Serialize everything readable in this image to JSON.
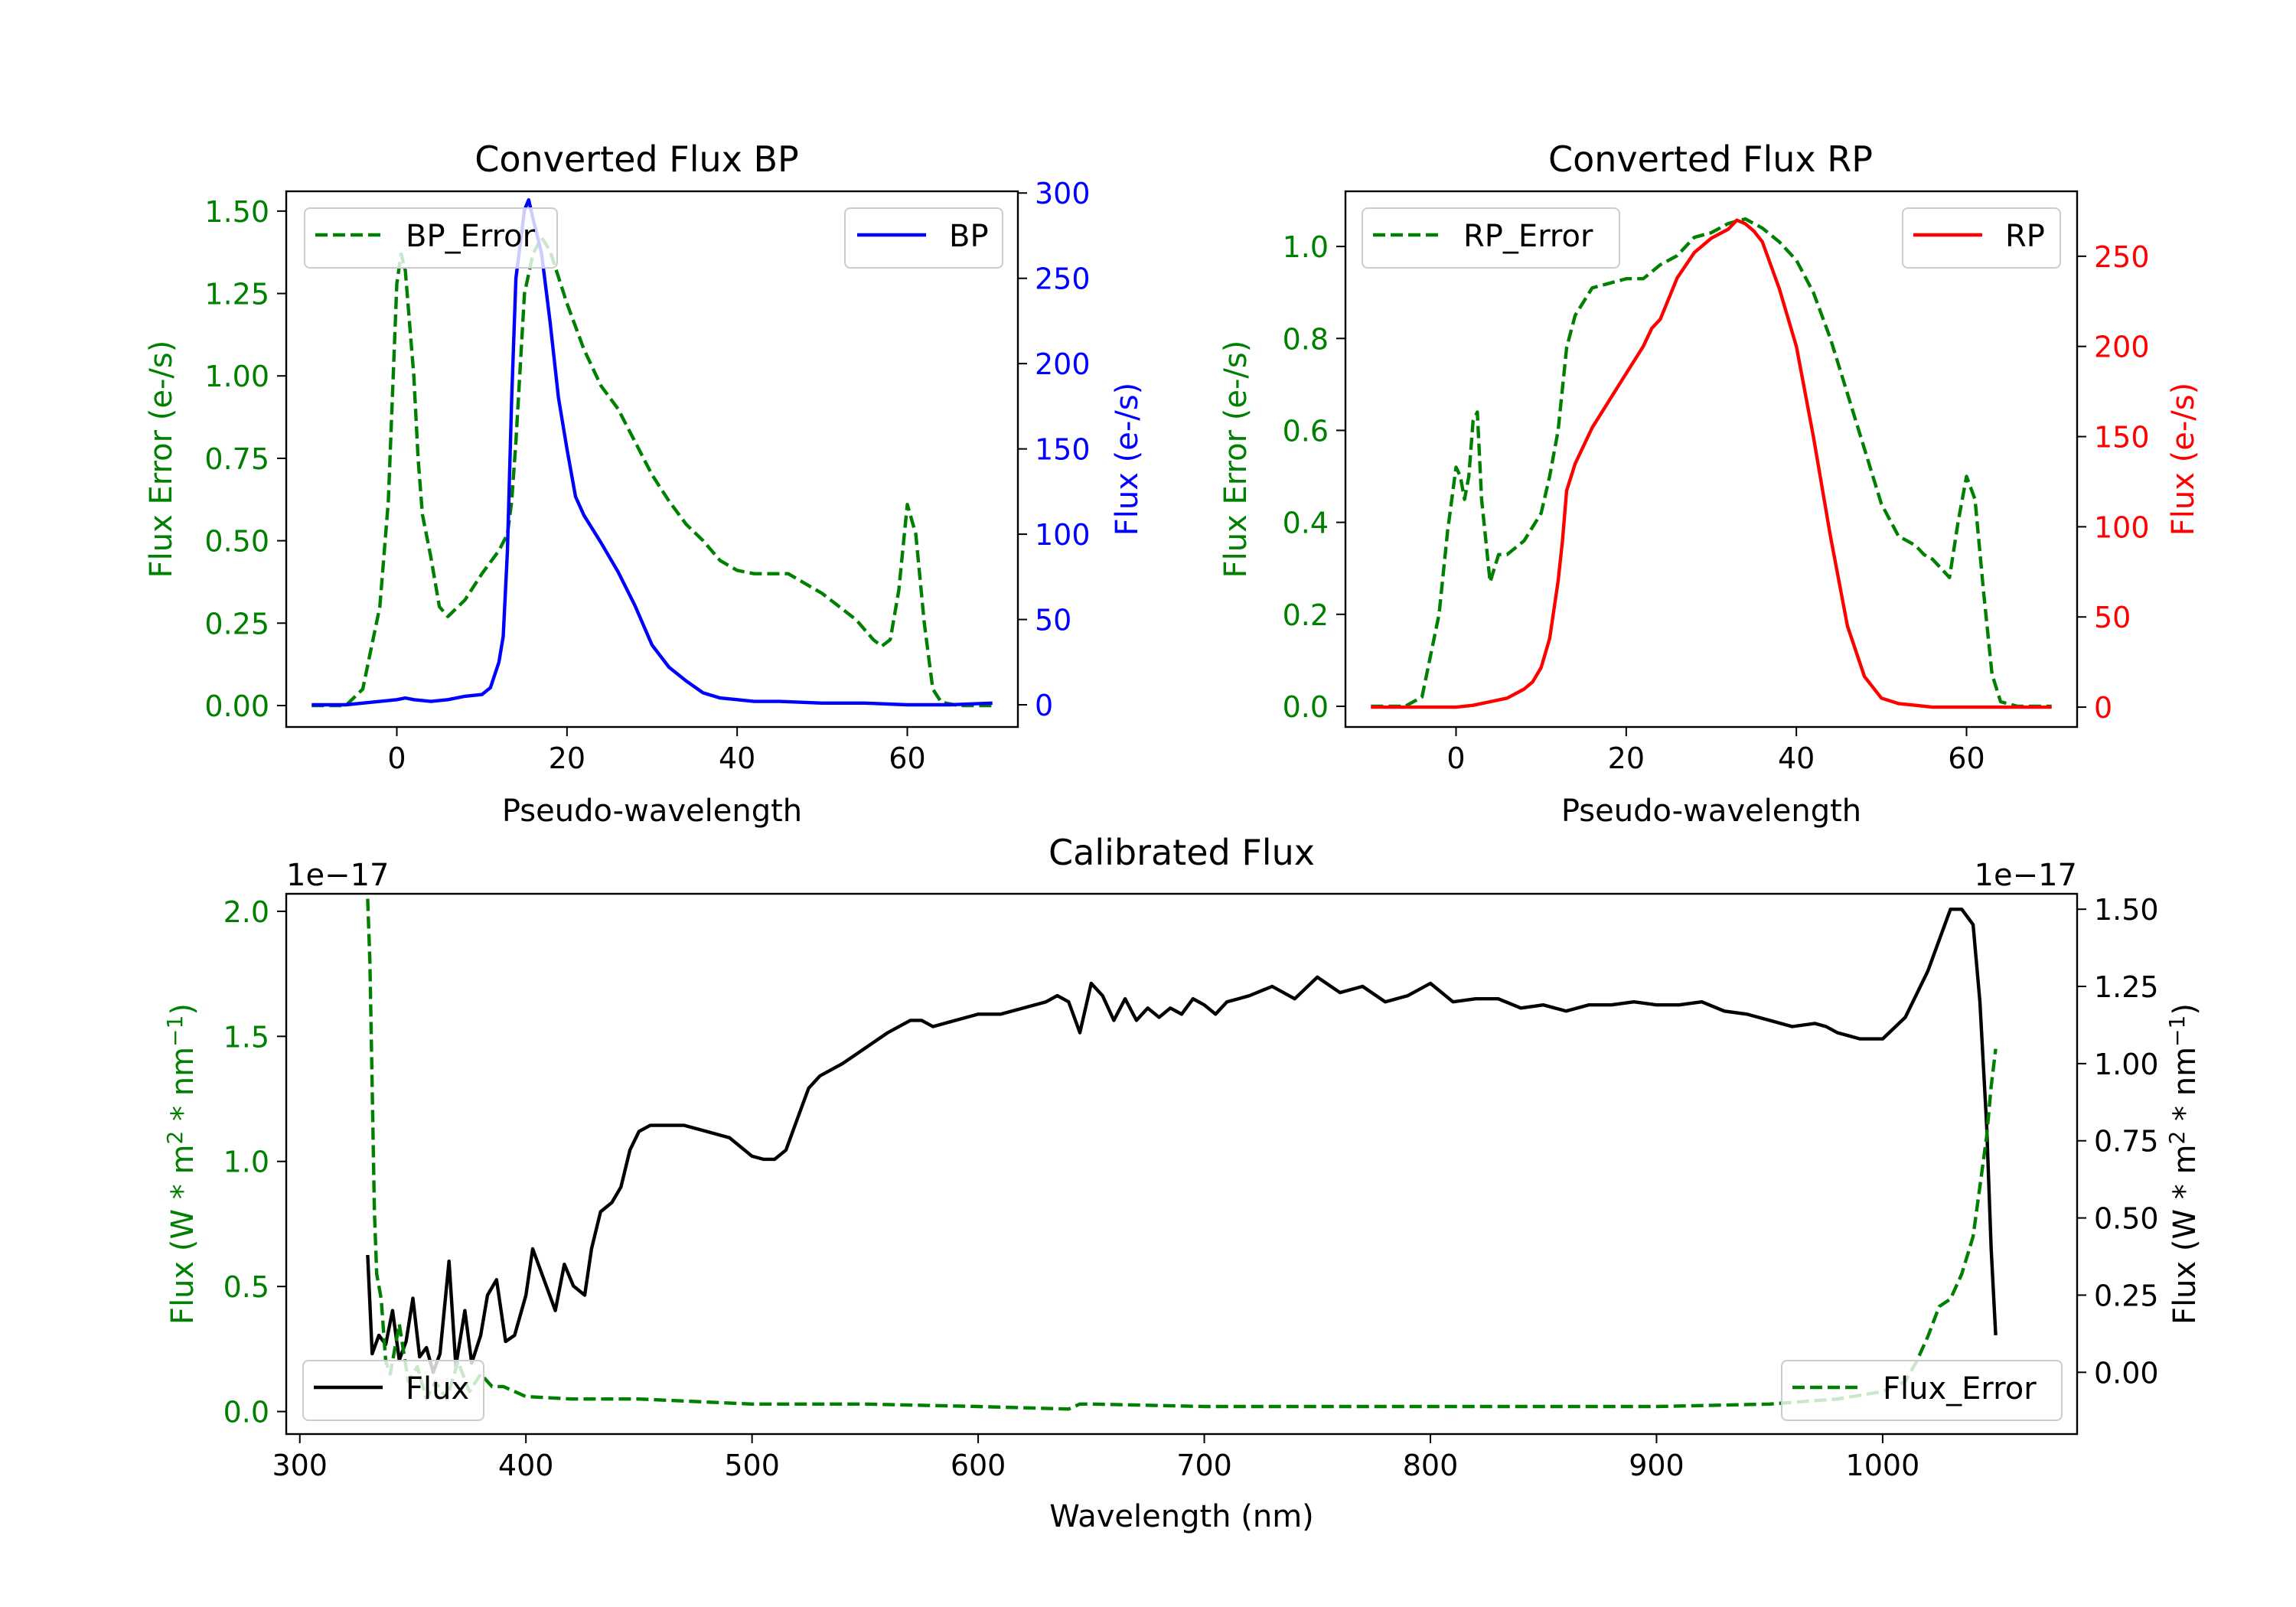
{
  "colors": {
    "bp": "#0000ff",
    "rp": "#ff0000",
    "error": "#008000",
    "flux": "#000000",
    "axis": "#000000"
  },
  "chart_data": [
    {
      "type": "line",
      "title": "Converted Flux BP",
      "xlabel": "Pseudo-wavelength",
      "y1label": "Flux Error (e-/s)",
      "y2label": "Flux (e-/s)",
      "xlim": [
        -13,
        73
      ],
      "y1lim": [
        -0.065,
        1.56
      ],
      "y2lim": [
        -13,
        301
      ],
      "xticks": [
        0,
        20,
        40,
        60
      ],
      "y1ticks": [
        "0.00",
        "0.25",
        "0.50",
        "0.75",
        "1.00",
        "1.25",
        "1.50"
      ],
      "y2ticks": [
        "0",
        "50",
        "100",
        "150",
        "200",
        "250",
        "300"
      ],
      "series": [
        {
          "name": "BP_Error",
          "axis": "left",
          "style": "dashed",
          "color": "#008000",
          "legend": "upper left",
          "x": [
            -10,
            -6,
            -4,
            -2,
            -1,
            0,
            0.5,
            1,
            2,
            2.5,
            3,
            4,
            5,
            6,
            8,
            10,
            12,
            13,
            13.5,
            14,
            15,
            16,
            17,
            18,
            20,
            22,
            24,
            26,
            28,
            30,
            32,
            34,
            36,
            38,
            40,
            42,
            44,
            46,
            48,
            50,
            52,
            54,
            56,
            57,
            58,
            59,
            60,
            61,
            62,
            63,
            64,
            66,
            68,
            70
          ],
          "y": [
            0,
            0,
            0.05,
            0.3,
            0.62,
            1.28,
            1.37,
            1.32,
            1.0,
            0.75,
            0.58,
            0.45,
            0.3,
            0.27,
            0.32,
            0.4,
            0.47,
            0.52,
            0.62,
            0.8,
            1.25,
            1.37,
            1.42,
            1.38,
            1.22,
            1.08,
            0.97,
            0.9,
            0.8,
            0.7,
            0.62,
            0.55,
            0.5,
            0.44,
            0.41,
            0.4,
            0.4,
            0.4,
            0.37,
            0.34,
            0.3,
            0.26,
            0.2,
            0.18,
            0.2,
            0.35,
            0.61,
            0.52,
            0.25,
            0.05,
            0.01,
            0,
            0,
            0
          ]
        },
        {
          "name": "BP",
          "axis": "right",
          "style": "solid",
          "color": "#0000ff",
          "legend": "upper right",
          "x": [
            -10,
            -6,
            -4,
            -2,
            0,
            1,
            2,
            4,
            6,
            8,
            10,
            11,
            12,
            12.5,
            13,
            13.5,
            14,
            15,
            15.5,
            16,
            17,
            18,
            19,
            20,
            21,
            22,
            24,
            26,
            28,
            30,
            32,
            34,
            36,
            38,
            40,
            42,
            45,
            50,
            55,
            60,
            65,
            70
          ],
          "y": [
            0,
            0,
            1,
            2,
            3,
            4,
            3,
            2,
            3,
            5,
            6,
            10,
            25,
            40,
            90,
            180,
            250,
            290,
            296,
            285,
            265,
            225,
            180,
            150,
            122,
            111,
            95,
            78,
            58,
            35,
            22,
            14,
            7,
            4,
            3,
            2,
            2,
            1,
            1,
            0,
            0,
            1
          ]
        }
      ]
    },
    {
      "type": "line",
      "title": "Converted Flux RP",
      "xlabel": "Pseudo-wavelength",
      "y1label": "Flux Error (e-/s)",
      "y2label": "Flux (e-/s)",
      "xlim": [
        -13,
        73
      ],
      "y1lim": [
        -0.045,
        1.12
      ],
      "y2lim": [
        -11,
        286
      ],
      "xticks": [
        0,
        20,
        40,
        60
      ],
      "y1ticks": [
        "0.0",
        "0.2",
        "0.4",
        "0.6",
        "0.8",
        "1.0"
      ],
      "y2ticks": [
        "0",
        "50",
        "100",
        "150",
        "200",
        "250"
      ],
      "series": [
        {
          "name": "RP_Error",
          "axis": "left",
          "style": "dashed",
          "color": "#008000",
          "legend": "upper left",
          "x": [
            -10,
            -6,
            -4,
            -2,
            -1,
            0,
            0.5,
            1,
            1.5,
            2,
            2.5,
            3,
            4,
            5,
            6,
            8,
            10,
            11,
            12,
            13,
            14,
            16,
            18,
            20,
            22,
            24,
            26,
            28,
            30,
            32,
            34,
            36,
            38,
            40,
            42,
            44,
            46,
            48,
            50,
            52,
            54,
            55,
            56,
            57,
            58,
            59,
            60,
            61,
            62,
            63,
            64,
            66,
            68,
            70
          ],
          "y": [
            0,
            0,
            0.02,
            0.2,
            0.38,
            0.52,
            0.5,
            0.45,
            0.5,
            0.62,
            0.64,
            0.45,
            0.27,
            0.33,
            0.33,
            0.36,
            0.42,
            0.5,
            0.6,
            0.78,
            0.85,
            0.91,
            0.92,
            0.93,
            0.93,
            0.96,
            0.98,
            1.02,
            1.03,
            1.05,
            1.06,
            1.04,
            1.01,
            0.97,
            0.9,
            0.8,
            0.68,
            0.56,
            0.44,
            0.37,
            0.35,
            0.33,
            0.32,
            0.3,
            0.28,
            0.4,
            0.5,
            0.45,
            0.25,
            0.07,
            0.01,
            0,
            0,
            0
          ]
        },
        {
          "name": "RP",
          "axis": "right",
          "style": "solid",
          "color": "#ff0000",
          "legend": "upper right",
          "x": [
            -10,
            -4,
            0,
            2,
            4,
            6,
            8,
            9,
            10,
            11,
            12,
            12.5,
            13,
            14,
            15,
            16,
            18,
            20,
            22,
            23,
            24,
            26,
            28,
            30,
            32,
            33,
            34,
            35,
            36,
            37,
            38,
            40,
            42,
            44,
            46,
            48,
            50,
            52,
            54,
            56,
            58,
            60,
            65,
            70
          ],
          "y": [
            0,
            0,
            0,
            1,
            3,
            5,
            10,
            14,
            22,
            38,
            70,
            92,
            120,
            135,
            145,
            155,
            170,
            185,
            200,
            210,
            215,
            238,
            252,
            260,
            265,
            270,
            268,
            264,
            258,
            245,
            232,
            200,
            150,
            95,
            45,
            17,
            5,
            2,
            1,
            0,
            0,
            0,
            0,
            0
          ]
        }
      ]
    },
    {
      "type": "line",
      "title": "Calibrated Flux",
      "xlabel": "Wavelength (nm)",
      "y1label": "Flux (W * m$^2$ * nm$^{-1}$)",
      "y2label": "Flux (W * m$^2$ * nm$^{-1}$)",
      "y1offset": "1e−17",
      "y2offset": "1e−17",
      "xlim": [
        294,
        1086
      ],
      "y1lim": [
        -0.09,
        2.07
      ],
      "y2lim": [
        -0.2,
        1.55
      ],
      "xticks": [
        300,
        400,
        500,
        600,
        700,
        800,
        900,
        1000
      ],
      "y1ticks": [
        "0.0",
        "0.5",
        "1.0",
        "1.5",
        "2.0"
      ],
      "y2ticks": [
        "0.00",
        "0.25",
        "0.50",
        "0.75",
        "1.00",
        "1.25",
        "1.50"
      ],
      "series": [
        {
          "name": "Flux",
          "axis": "right",
          "style": "solid",
          "color": "#000000",
          "legend": "lower left",
          "x": [
            330,
            332,
            335,
            338,
            341,
            344,
            347,
            350,
            353,
            356,
            359,
            362,
            366,
            369,
            373,
            376,
            380,
            383,
            387,
            391,
            395,
            400,
            403,
            408,
            413,
            417,
            421,
            426,
            429,
            433,
            438,
            442,
            446,
            450,
            455,
            460,
            470,
            480,
            490,
            500,
            505,
            510,
            515,
            520,
            525,
            530,
            540,
            550,
            560,
            570,
            575,
            580,
            590,
            600,
            610,
            620,
            630,
            635,
            640,
            645,
            650,
            655,
            660,
            665,
            670,
            675,
            680,
            685,
            690,
            695,
            700,
            705,
            710,
            715,
            720,
            730,
            740,
            750,
            760,
            770,
            780,
            790,
            800,
            810,
            820,
            830,
            840,
            850,
            860,
            870,
            880,
            890,
            900,
            910,
            920,
            930,
            940,
            950,
            960,
            970,
            975,
            980,
            990,
            1000,
            1010,
            1020,
            1030,
            1035,
            1040,
            1043,
            1046,
            1048,
            1050
          ],
          "y": [
            0.38,
            0.06,
            0.12,
            0.09,
            0.2,
            0.04,
            0.1,
            0.24,
            0.05,
            0.08,
            0.0,
            0.06,
            0.36,
            0.02,
            0.2,
            0.03,
            0.12,
            0.25,
            0.3,
            0.1,
            0.12,
            0.25,
            0.4,
            0.3,
            0.2,
            0.35,
            0.28,
            0.25,
            0.4,
            0.52,
            0.55,
            0.6,
            0.72,
            0.78,
            0.8,
            0.8,
            0.8,
            0.78,
            0.76,
            0.7,
            0.69,
            0.69,
            0.72,
            0.82,
            0.92,
            0.96,
            1.0,
            1.05,
            1.1,
            1.14,
            1.14,
            1.12,
            1.14,
            1.16,
            1.16,
            1.18,
            1.2,
            1.22,
            1.2,
            1.1,
            1.26,
            1.22,
            1.14,
            1.21,
            1.14,
            1.18,
            1.15,
            1.18,
            1.16,
            1.21,
            1.19,
            1.16,
            1.2,
            1.21,
            1.22,
            1.25,
            1.21,
            1.28,
            1.23,
            1.25,
            1.2,
            1.22,
            1.26,
            1.2,
            1.21,
            1.21,
            1.18,
            1.19,
            1.17,
            1.19,
            1.19,
            1.2,
            1.19,
            1.19,
            1.2,
            1.17,
            1.16,
            1.14,
            1.12,
            1.13,
            1.12,
            1.1,
            1.08,
            1.08,
            1.15,
            1.3,
            1.5,
            1.5,
            1.45,
            1.2,
            0.8,
            0.4,
            0.12
          ]
        },
        {
          "name": "Flux_Error",
          "axis": "left",
          "style": "dashed",
          "color": "#008000",
          "legend": "lower right",
          "x": [
            330,
            331,
            332,
            333,
            334,
            336,
            338,
            340,
            344,
            348,
            352,
            356,
            360,
            365,
            370,
            375,
            380,
            385,
            390,
            395,
            400,
            420,
            450,
            500,
            550,
            600,
            640,
            645,
            650,
            700,
            750,
            800,
            850,
            900,
            950,
            980,
            1000,
            1010,
            1015,
            1020,
            1025,
            1030,
            1035,
            1040,
            1043,
            1046,
            1048,
            1050
          ],
          "y": [
            2.05,
            1.8,
            1.3,
            0.8,
            0.55,
            0.45,
            0.2,
            0.15,
            0.35,
            0.12,
            0.18,
            0.05,
            0.12,
            0.05,
            0.2,
            0.08,
            0.15,
            0.1,
            0.1,
            0.08,
            0.06,
            0.05,
            0.05,
            0.03,
            0.03,
            0.02,
            0.01,
            0.03,
            0.03,
            0.02,
            0.02,
            0.02,
            0.02,
            0.02,
            0.03,
            0.05,
            0.08,
            0.12,
            0.2,
            0.3,
            0.42,
            0.45,
            0.55,
            0.7,
            0.9,
            1.1,
            1.3,
            1.45
          ]
        }
      ]
    }
  ]
}
